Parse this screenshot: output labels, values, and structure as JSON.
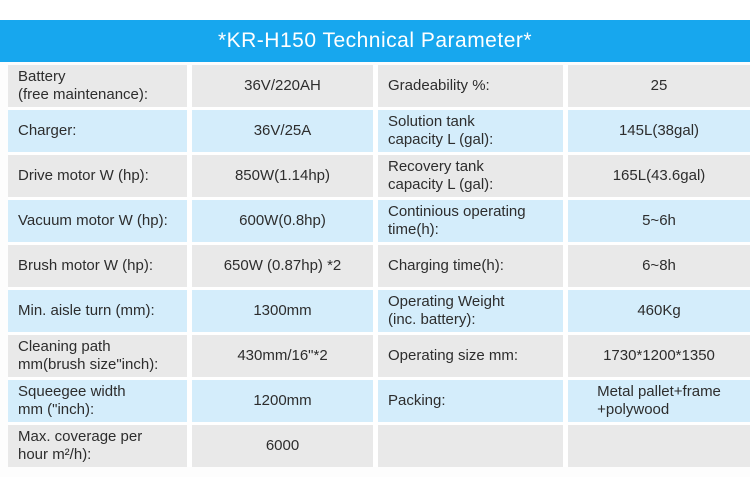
{
  "title": "*KR-H150 Technical Parameter*",
  "colors": {
    "header_bg": "#17a7ee",
    "row_gray": "#e9e9e9",
    "row_blue": "#d4edfb",
    "title_text": "#ffffff",
    "cell_text": "#2d2d2d"
  },
  "table": {
    "rows": [
      {
        "left_label": "Battery\n(free maintenance):",
        "left_value": "36V/220AH",
        "right_label": "Gradeability %:",
        "right_value": "25"
      },
      {
        "left_label": "Charger:",
        "left_value": "36V/25A",
        "right_label": "Solution tank\ncapacity L (gal):",
        "right_value": "145L(38gal)"
      },
      {
        "left_label": "Drive motor W (hp):",
        "left_value": "850W(1.14hp)",
        "right_label": "Recovery tank\ncapacity L (gal):",
        "right_value": "165L(43.6gal)"
      },
      {
        "left_label": "Vacuum motor W (hp):",
        "left_value": "600W(0.8hp)",
        "right_label": "Continious operating\ntime(h):",
        "right_value": "5~6h"
      },
      {
        "left_label": "Brush motor W (hp):",
        "left_value": "650W (0.87hp) *2",
        "right_label": "Charging time(h):",
        "right_value": "6~8h"
      },
      {
        "left_label": "Min. aisle turn (mm):",
        "left_value": "1300mm",
        "right_label": "Operating Weight\n (inc. battery):",
        "right_value": "460Kg"
      },
      {
        "left_label": "Cleaning path\nmm(brush size\"inch):",
        "left_value": "430mm/16\"*2",
        "right_label": "Operating size mm:",
        "right_value": "1730*1200*1350"
      },
      {
        "left_label": "Squeegee width\nmm (\"inch):",
        "left_value": "1200mm",
        "right_label": "Packing:",
        "right_value": "Metal pallet+frame\n+polywood"
      },
      {
        "left_label": "Max. coverage per\nhour m²/h):",
        "left_value": "6000",
        "right_label": "",
        "right_value": ""
      }
    ]
  }
}
